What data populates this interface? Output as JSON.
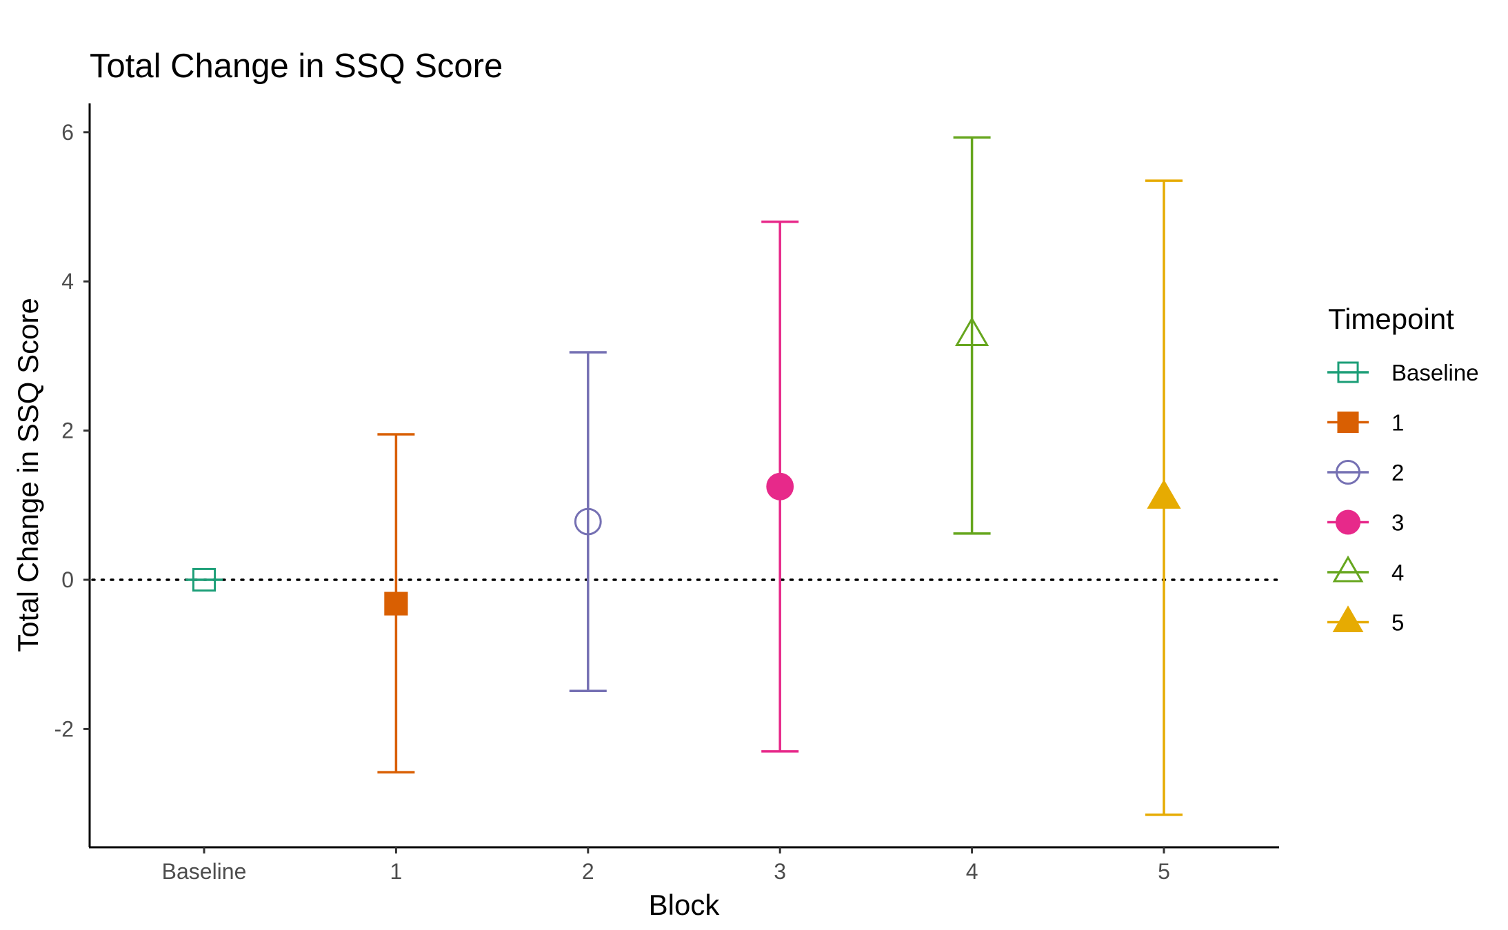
{
  "chart_data": {
    "type": "scatter",
    "subtype": "point-with-errorbars",
    "title": "Total Change in SSQ Score",
    "xlabel": "Block",
    "ylabel": "Total Change in SSQ Score",
    "categories": [
      "Baseline",
      "1",
      "2",
      "3",
      "4",
      "5"
    ],
    "yticks": [
      "6",
      "4",
      "2",
      "0",
      "-2"
    ],
    "ylim": [
      -3.6,
      6.4
    ],
    "reference_line": {
      "y": 0,
      "style": "dotted"
    },
    "grid": false,
    "legend": {
      "title": "Timepoint",
      "position": "right",
      "labels": [
        "Baseline",
        "1",
        "2",
        "3",
        "4",
        "5"
      ]
    },
    "series": [
      {
        "category": "Baseline",
        "value": 0.0,
        "lower": null,
        "upper": null,
        "color": "#1b9e77",
        "shape": "square-open"
      },
      {
        "category": "1",
        "value": -0.32,
        "lower": -2.58,
        "upper": 1.95,
        "color": "#d95f02",
        "shape": "square-filled"
      },
      {
        "category": "2",
        "value": 0.78,
        "lower": -1.49,
        "upper": 3.05,
        "color": "#7570b3",
        "shape": "circle-open"
      },
      {
        "category": "3",
        "value": 1.25,
        "lower": -2.3,
        "upper": 4.8,
        "color": "#e7298a",
        "shape": "circle-filled"
      },
      {
        "category": "4",
        "value": 3.28,
        "lower": 0.62,
        "upper": 5.93,
        "color": "#66a61e",
        "shape": "triangle-open"
      },
      {
        "category": "5",
        "value": 1.1,
        "lower": -3.15,
        "upper": 5.35,
        "color": "#e6ab02",
        "shape": "triangle-filled"
      }
    ]
  }
}
